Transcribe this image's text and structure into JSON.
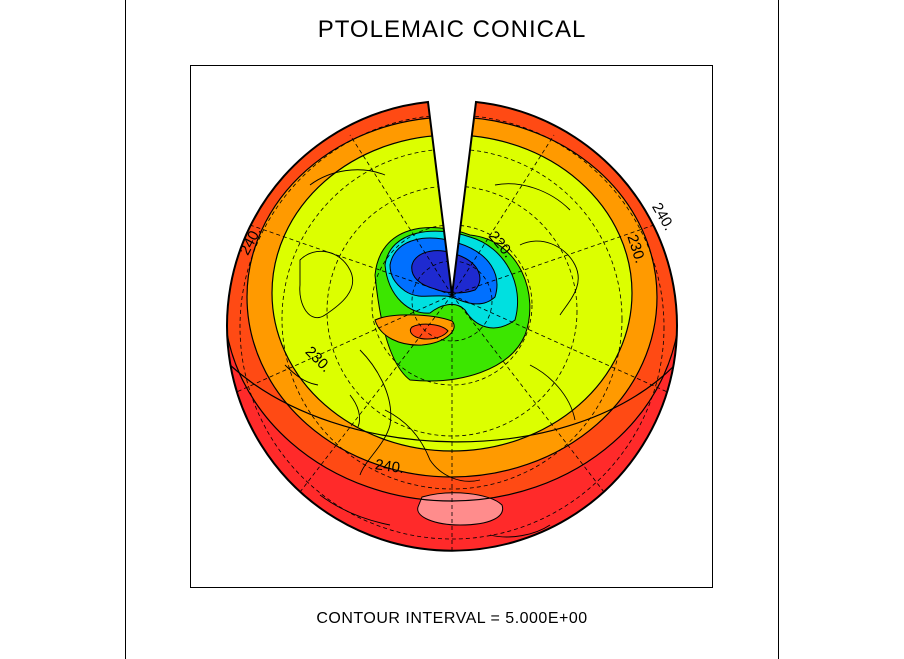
{
  "figure": {
    "title": "PTOLEMAIC CONICAL",
    "caption": "CONTOUR INTERVAL = 5.000E+00"
  },
  "contour_labels": [
    {
      "id": "label-240-left",
      "text": "240."
    },
    {
      "id": "label-240-right",
      "text": "240."
    },
    {
      "id": "label-230-right",
      "text": "230."
    },
    {
      "id": "label-230-left",
      "text": "230."
    },
    {
      "id": "label-240-bottom",
      "text": "240."
    },
    {
      "id": "label-220-center",
      "text": "220."
    }
  ],
  "colors": {
    "outer_red": "#ff2a2a",
    "red_orange": "#ff4a14",
    "orange": "#ff9a00",
    "yellow_green": "#dcff00",
    "green": "#3ce600",
    "cyan": "#00e0e0",
    "blue": "#0070ff",
    "dark_blue": "#1e2ad0",
    "pink": "#ff8c8c"
  }
}
